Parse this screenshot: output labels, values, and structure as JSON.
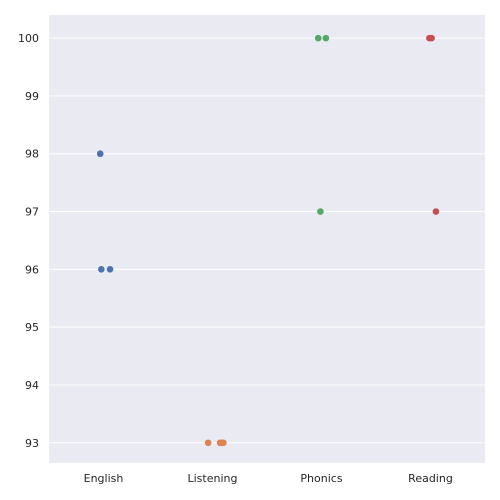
{
  "chart_data": {
    "type": "scatter",
    "title": "",
    "xlabel": "",
    "ylabel": "",
    "categories": [
      "English",
      "Listening",
      "Phonics",
      "Reading"
    ],
    "ylim": [
      92.65,
      100.4
    ],
    "yticks": [
      93,
      94,
      95,
      96,
      97,
      98,
      99,
      100
    ],
    "grid": true,
    "legend": "none",
    "series": [
      {
        "category": "English",
        "color": "#4c72b0",
        "points": [
          {
            "jitter": -0.03,
            "y": 98
          },
          {
            "jitter": -0.02,
            "y": 96
          },
          {
            "jitter": 0.06,
            "y": 96
          }
        ]
      },
      {
        "category": "Listening",
        "color": "#dd8452",
        "points": [
          {
            "jitter": -0.04,
            "y": 93
          },
          {
            "jitter": 0.07,
            "y": 93
          },
          {
            "jitter": 0.09,
            "y": 93
          },
          {
            "jitter": 0.1,
            "y": 93
          }
        ]
      },
      {
        "category": "Phonics",
        "color": "#55a868",
        "points": [
          {
            "jitter": -0.03,
            "y": 100
          },
          {
            "jitter": 0.04,
            "y": 100
          },
          {
            "jitter": -0.01,
            "y": 97
          }
        ]
      },
      {
        "category": "Reading",
        "color": "#c44e52",
        "points": [
          {
            "jitter": -0.01,
            "y": 100
          },
          {
            "jitter": 0.01,
            "y": 100
          },
          {
            "jitter": 0.05,
            "y": 97
          }
        ]
      }
    ]
  }
}
